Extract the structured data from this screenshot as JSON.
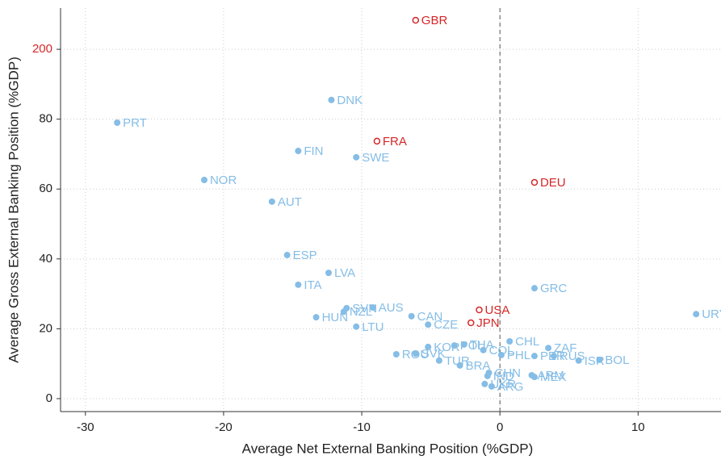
{
  "chart_data": {
    "type": "scatter",
    "x_label": "Average Net External Banking Position (%GDP)",
    "y_label": "Average Gross External Banking Position (%GDP)",
    "xlim": [
      -31.8,
      16
    ],
    "ylim": [
      -3.7,
      211.8
    ],
    "xticks": [
      -30,
      -20,
      -10,
      0,
      10
    ],
    "yticks": [
      0,
      20,
      40,
      60,
      80,
      200
    ],
    "y_break": {
      "from": 100,
      "to": 200,
      "color": "#d62728"
    },
    "grid": true,
    "zero_line": {
      "x": 0,
      "style": "dashed"
    },
    "series": [
      {
        "marker": "filled",
        "color": "#85bde6",
        "labels": [
          "DNK",
          "PRT",
          "FIN",
          "SWE",
          "NOR",
          "AUT",
          "ESP",
          "LVA",
          "ITA",
          "GRC",
          "URY",
          "SVN",
          "NZL",
          "AUS",
          "CAN",
          "CZE",
          "HUN",
          "LTU",
          "CHL",
          "ZAF",
          "KOR",
          "POL",
          "THA",
          "COL",
          "PHL",
          "PER",
          "RUS",
          "ISR",
          "BOL",
          "ROU",
          "SVK",
          "TUR",
          "BRA",
          "CHN",
          "ARM",
          "MEX",
          "IND",
          "UKR",
          "ARG"
        ],
        "x": [
          -12.2,
          -27.7,
          -14.6,
          -10.4,
          -21.4,
          -16.5,
          -15.4,
          -12.4,
          -14.6,
          2.5,
          14.2,
          -11.1,
          -11.3,
          -9.2,
          -6.4,
          -5.2,
          -13.3,
          -10.4,
          0.7,
          3.5,
          -5.2,
          -3.3,
          -2.6,
          -1.2,
          0.1,
          2.5,
          3.9,
          5.7,
          7.2,
          -7.5,
          -6.1,
          -4.4,
          -2.9,
          -0.8,
          2.3,
          2.5,
          -0.9,
          -1.1,
          -0.6
        ],
        "y": [
          85.5,
          79.0,
          70.9,
          69.1,
          62.6,
          56.4,
          41.1,
          36.0,
          32.6,
          31.6,
          24.2,
          25.9,
          24.9,
          26.1,
          23.6,
          21.2,
          23.3,
          20.6,
          16.4,
          14.5,
          14.8,
          15.2,
          15.5,
          13.9,
          12.5,
          12.2,
          12.2,
          10.9,
          11.1,
          12.7,
          12.9,
          10.9,
          9.5,
          7.4,
          6.7,
          6.2,
          6.5,
          4.2,
          3.5
        ]
      },
      {
        "marker": "hollow",
        "color": "#d62728",
        "labels": [
          "GBR",
          "FRA",
          "DEU",
          "USA",
          "JPN"
        ],
        "x": [
          -6.1,
          -8.9,
          2.5,
          -1.5,
          -2.1
        ],
        "y": [
          208.3,
          73.7,
          61.9,
          25.4,
          21.7
        ]
      }
    ]
  }
}
